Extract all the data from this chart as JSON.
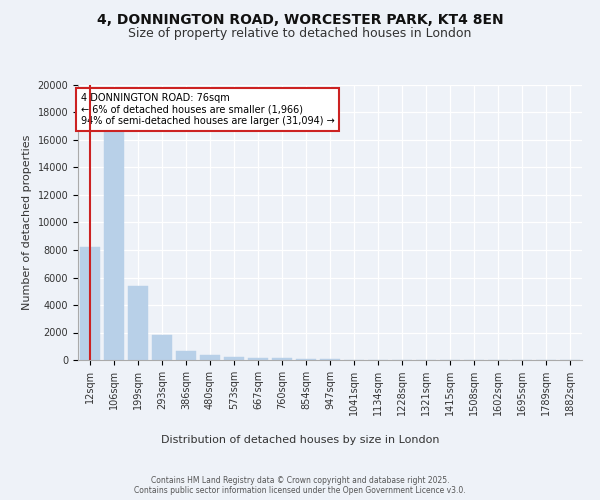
{
  "title_line1": "4, DONNINGTON ROAD, WORCESTER PARK, KT4 8EN",
  "title_line2": "Size of property relative to detached houses in London",
  "xlabel": "Distribution of detached houses by size in London",
  "ylabel": "Number of detached properties",
  "bar_color": "#b8d0e8",
  "bar_edge_color": "#b8d0e8",
  "vline_color": "#cc2222",
  "vline_x": 0,
  "annotation_text": "4 DONNINGTON ROAD: 76sqm\n← 6% of detached houses are smaller (1,966)\n94% of semi-detached houses are larger (31,094) →",
  "annotation_box_color": "#cc2222",
  "annotation_text_color": "#000000",
  "categories": [
    "12sqm",
    "106sqm",
    "199sqm",
    "293sqm",
    "386sqm",
    "480sqm",
    "573sqm",
    "667sqm",
    "760sqm",
    "854sqm",
    "947sqm",
    "1041sqm",
    "1134sqm",
    "1228sqm",
    "1321sqm",
    "1415sqm",
    "1508sqm",
    "1602sqm",
    "1695sqm",
    "1789sqm",
    "1882sqm"
  ],
  "values": [
    8200,
    16700,
    5350,
    1850,
    650,
    350,
    220,
    170,
    130,
    80,
    50,
    30,
    20,
    15,
    10,
    8,
    6,
    5,
    4,
    3,
    2
  ],
  "ylim": [
    0,
    20000
  ],
  "yticks": [
    0,
    2000,
    4000,
    6000,
    8000,
    10000,
    12000,
    14000,
    16000,
    18000,
    20000
  ],
  "background_color": "#eef2f8",
  "plot_background": "#eef2f8",
  "grid_color": "#ffffff",
  "footer_text": "Contains HM Land Registry data © Crown copyright and database right 2025.\nContains public sector information licensed under the Open Government Licence v3.0.",
  "title_fontsize": 10,
  "subtitle_fontsize": 9,
  "label_fontsize": 8,
  "tick_fontsize": 7,
  "annotation_fontsize": 7
}
